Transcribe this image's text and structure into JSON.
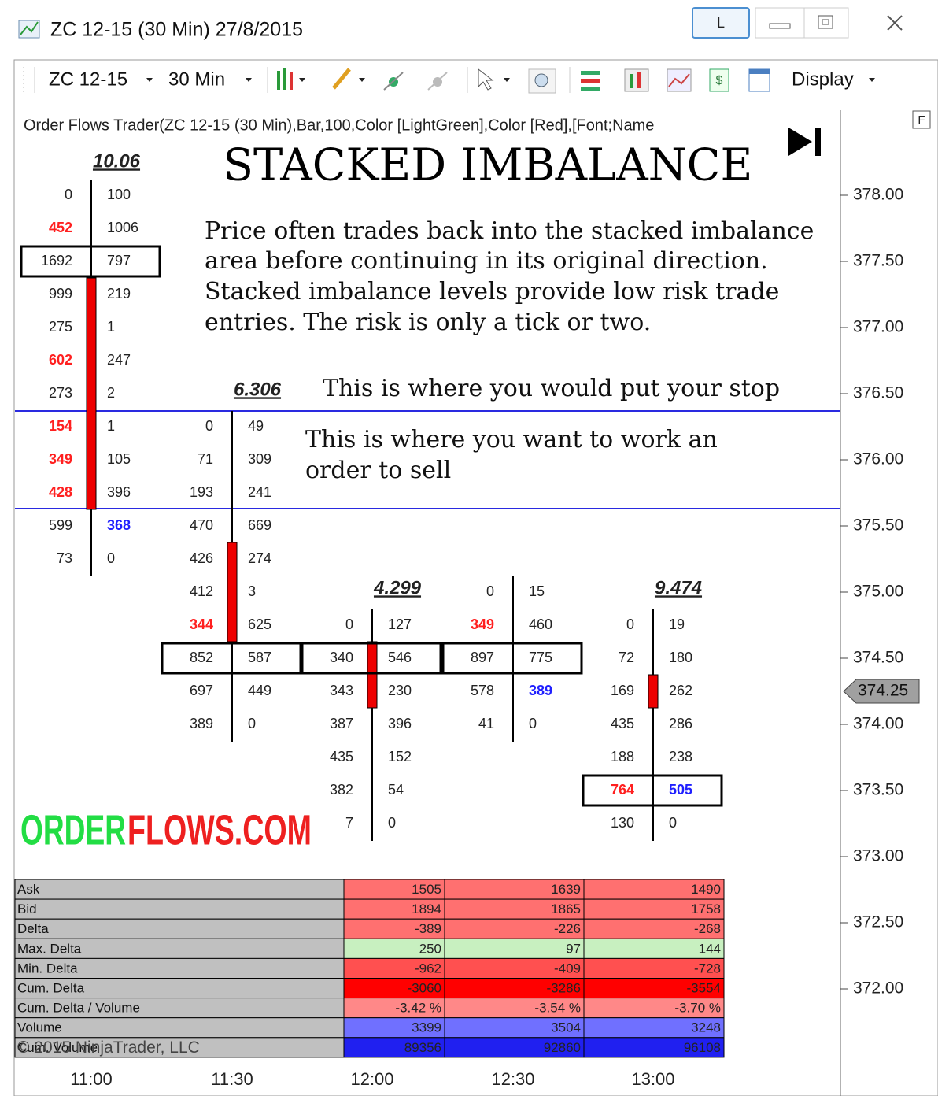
{
  "window": {
    "title": "ZC 12-15 (30 Min)  27/8/2015",
    "layout_button": "L"
  },
  "toolbar": {
    "instrument": "ZC 12-15",
    "interval": "30 Min",
    "display": "Display"
  },
  "indicator": {
    "label": "Order Flows Trader(ZC 12-15 (30 Min),Bar,100,Color [LightGreen],Color [Red],[Font;Name",
    "button": "F"
  },
  "annotations": {
    "title": "STACKED IMBALANCE",
    "paragraph": [
      "Price often trades back into the stacked imbalance",
      "area before continuing in its original direction.",
      "Stacked imbalance levels provide low risk trade",
      "entries. The risk is only a tick or two."
    ],
    "stop": "This is where you would put your stop",
    "sell": [
      "This is where you want to work an",
      "order to sell"
    ]
  },
  "logo": {
    "part1": "ORDER",
    "part2": "FLOWS.COM"
  },
  "price_axis": {
    "labels": [
      "378.00",
      "377.50",
      "377.00",
      "376.50",
      "376.00",
      "375.50",
      "375.00",
      "374.50",
      "374.00",
      "373.50",
      "373.00",
      "372.50",
      "372.00"
    ],
    "current": "374.25"
  },
  "time_axis": [
    "11:00",
    "11:30",
    "12:00",
    "12:30",
    "13:00"
  ],
  "bars": [
    {
      "header": "10.06",
      "rows": [
        [
          0,
          100
        ],
        [
          452,
          1006
        ],
        [
          1692,
          797
        ],
        [
          999,
          219
        ],
        [
          275,
          1
        ],
        [
          602,
          247
        ],
        [
          273,
          2
        ],
        [
          154,
          1
        ],
        [
          349,
          105
        ],
        [
          428,
          396
        ],
        [
          599,
          368
        ],
        [
          73,
          0
        ]
      ],
      "box_row": 2,
      "body_rows": [
        3,
        9
      ],
      "highlights": [
        {
          "row": 1,
          "side": 0,
          "color": "#ff2020"
        },
        {
          "row": 5,
          "side": 0,
          "color": "#ff2020"
        },
        {
          "row": 7,
          "side": 0,
          "color": "#ff2020"
        },
        {
          "row": 8,
          "side": 0,
          "color": "#ff2020"
        },
        {
          "row": 9,
          "side": 0,
          "color": "#ff2020"
        },
        {
          "row": 10,
          "side": 1,
          "color": "#2020ff"
        }
      ]
    },
    {
      "header": "6.306",
      "rows": [
        [
          0,
          49
        ],
        [
          71,
          309
        ],
        [
          193,
          241
        ],
        [
          470,
          669
        ],
        [
          426,
          274
        ],
        [
          412,
          3
        ],
        [
          344,
          625
        ],
        [
          852,
          587
        ],
        [
          697,
          449
        ],
        [
          389,
          0
        ]
      ],
      "box_row": 7,
      "body_rows": [
        4,
        6
      ],
      "highlights": [
        {
          "row": 6,
          "side": 0,
          "color": "#ff2020"
        }
      ]
    },
    {
      "header": "4.299",
      "rows": [
        [
          0,
          127
        ],
        [
          340,
          546
        ],
        [
          343,
          230
        ],
        [
          387,
          396
        ],
        [
          435,
          152
        ],
        [
          382,
          54
        ],
        [
          7,
          0
        ]
      ],
      "box_row": 1,
      "body_rows": [
        1,
        2
      ],
      "highlights": []
    },
    {
      "rows": [
        [
          0,
          15
        ],
        [
          349,
          460
        ],
        [
          897,
          775
        ],
        [
          578,
          389
        ],
        [
          41,
          0
        ]
      ],
      "box_row": 2,
      "highlights": [
        {
          "row": 1,
          "side": 0,
          "color": "#ff2020"
        },
        {
          "row": 3,
          "side": 1,
          "color": "#2020ff"
        }
      ]
    },
    {
      "header": "9.474",
      "rows": [
        [
          0,
          19
        ],
        [
          72,
          180
        ],
        [
          169,
          262
        ],
        [
          435,
          286
        ],
        [
          188,
          238
        ],
        [
          764,
          505
        ],
        [
          130,
          0
        ]
      ],
      "box_row": 5,
      "body_rows": [
        2,
        2
      ],
      "highlights": [
        {
          "row": 5,
          "side": 0,
          "color": "#ff2020"
        },
        {
          "row": 5,
          "side": 1,
          "color": "#2020ff"
        }
      ]
    }
  ],
  "summary": {
    "labels": [
      "Ask",
      "Bid",
      "Delta",
      "Max. Delta",
      "Min. Delta",
      "Cum. Delta",
      "Cum. Delta / Volume",
      "Volume",
      "Cum. Volume"
    ],
    "columns": [
      [
        1505,
        1894,
        -389,
        250,
        -962,
        -3060,
        "-3.42 %",
        3399,
        89356
      ],
      [
        1639,
        1865,
        -226,
        97,
        -409,
        -3286,
        "-3.54 %",
        3504,
        92860
      ],
      [
        1490,
        1758,
        -268,
        144,
        -728,
        -3554,
        "-3.70 %",
        3248,
        96108
      ]
    ]
  },
  "copyright": "© 2015 NinjaTrader, LLC"
}
